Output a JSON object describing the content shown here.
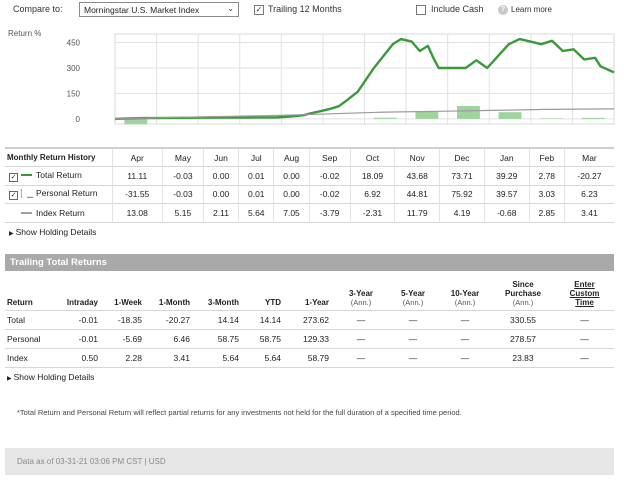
{
  "compare": {
    "label": "Compare to:",
    "selected": "Morningstar U.S. Market Index",
    "trailing_label": "Trailing 12 Months",
    "trailing_checked": true,
    "include_cash_label": "Include Cash",
    "include_cash_checked": false,
    "learn_more": "Learn more",
    "help_glyph": "?"
  },
  "chart_data": {
    "type": "line",
    "ylabel": "Return %",
    "ylim": [
      -30,
      500
    ],
    "yticks": [
      0,
      150,
      300,
      450
    ],
    "grid": true,
    "x": [
      "Apr",
      "May",
      "Jun",
      "Jul",
      "Aug",
      "Sep",
      "Oct",
      "Nov",
      "Dec",
      "Jan",
      "Feb",
      "Mar"
    ],
    "series": [
      {
        "name": "Total Return",
        "color": "#3a9a3a",
        "points": [
          [
            0,
            0
          ],
          [
            0.5,
            3
          ],
          [
            1,
            5
          ],
          [
            2,
            6
          ],
          [
            3,
            7
          ],
          [
            4,
            8
          ],
          [
            5,
            8
          ],
          [
            6,
            9
          ],
          [
            6.5,
            14
          ],
          [
            7,
            22
          ],
          [
            7.3,
            35
          ],
          [
            7.6,
            45
          ],
          [
            8,
            60
          ],
          [
            8.3,
            75
          ],
          [
            8.6,
            110
          ],
          [
            9,
            160
          ],
          [
            9.3,
            230
          ],
          [
            9.6,
            300
          ],
          [
            10,
            380
          ],
          [
            10.3,
            440
          ],
          [
            10.6,
            470
          ],
          [
            11,
            455
          ],
          [
            11.3,
            400
          ],
          [
            11.6,
            430
          ],
          [
            11.8,
            360
          ],
          [
            12,
            300
          ],
          [
            12.5,
            300
          ],
          [
            13,
            300
          ],
          [
            13.4,
            345
          ],
          [
            13.8,
            300
          ],
          [
            14.2,
            370
          ],
          [
            14.6,
            440
          ],
          [
            15,
            470
          ],
          [
            15.4,
            455
          ],
          [
            15.8,
            440
          ],
          [
            16.2,
            460
          ],
          [
            16.6,
            400
          ],
          [
            17,
            410
          ],
          [
            17.4,
            350
          ],
          [
            17.8,
            360
          ],
          [
            18,
            310
          ],
          [
            18.5,
            273.62
          ]
        ]
      },
      {
        "name": "Index Return",
        "color": "#9a9a9a",
        "points": [
          [
            0,
            0
          ],
          [
            2,
            8
          ],
          [
            4,
            14
          ],
          [
            6,
            20
          ],
          [
            8,
            30
          ],
          [
            10,
            40
          ],
          [
            12,
            45
          ],
          [
            14,
            50
          ],
          [
            16,
            56
          ],
          [
            18.5,
            59
          ]
        ]
      }
    ],
    "monthly_bars": [
      -31.55,
      -0.03,
      0,
      0.01,
      0,
      -0.02,
      6.92,
      44.81,
      75.92,
      39.57,
      3.03,
      6.23
    ]
  },
  "monthly": {
    "title": "Monthly Return History",
    "months": [
      "Apr",
      "May",
      "Jun",
      "Jul",
      "Aug",
      "Sep",
      "Oct",
      "Nov",
      "Dec",
      "Jan",
      "Feb",
      "Mar"
    ],
    "rows": [
      {
        "label": "Total Return",
        "checked": true,
        "swatch": "#3a9a3a",
        "values": [
          "11.11",
          "-0.03",
          "0.00",
          "0.01",
          "0.00",
          "-0.02",
          "18.09",
          "43.68",
          "73.71",
          "39.29",
          "2.78",
          "-20.27"
        ]
      },
      {
        "label": "Personal Return",
        "checked": true,
        "swatch": "#5cb85c",
        "values": [
          "-31.55",
          "-0.03",
          "0.00",
          "0.01",
          "0.00",
          "-0.02",
          "6.92",
          "44.81",
          "75.92",
          "39.57",
          "3.03",
          "6.23"
        ]
      },
      {
        "label": "Index Return",
        "checked": false,
        "swatch": "#a0a0a0",
        "values": [
          "13.08",
          "5.15",
          "2.11",
          "5.64",
          "7.05",
          "-3.79",
          "-2.31",
          "11.79",
          "4.19",
          "-0.68",
          "2.85",
          "3.41"
        ]
      }
    ],
    "show_details": "Show Holding Details"
  },
  "trailing": {
    "title": "Trailing Total Returns",
    "headers": {
      "return": "Return",
      "intraday": "Intraday",
      "week": "1-Week",
      "month": "1-Month",
      "month3": "3-Month",
      "ytd": "YTD",
      "year1": "1-Year",
      "year3": "3-Year",
      "year3_sub": "(Ann.)",
      "year5": "5-Year",
      "year5_sub": "(Ann.)",
      "year10": "10-Year",
      "year10_sub": "(Ann.)",
      "since_l1": "Since",
      "since_l2": "Purchase",
      "since_sub": "(Ann.)",
      "custom_l1": "Enter",
      "custom_l2": "Custom",
      "custom_l3": "Time"
    },
    "rows": [
      {
        "label": "Total",
        "values": [
          "-0.01",
          "-18.35",
          "-20.27",
          "14.14",
          "14.14",
          "273.62",
          "—",
          "—",
          "—",
          "330.55",
          "—"
        ]
      },
      {
        "label": "Personal",
        "values": [
          "-0.01",
          "-5.69",
          "6.46",
          "58.75",
          "58.75",
          "129.33",
          "—",
          "—",
          "—",
          "278.57",
          "—"
        ]
      },
      {
        "label": "Index",
        "values": [
          "0.50",
          "2.28",
          "3.41",
          "5.64",
          "5.64",
          "58.79",
          "—",
          "—",
          "—",
          "23.83",
          "—"
        ]
      }
    ],
    "show_details": "Show Holding Details"
  },
  "footnote": "*Total Return and Personal Return will reflect partial returns for any investments not held for the full duration of a specified time period.",
  "footer": "Data as of 03-31-21 03:06 PM CST | USD"
}
